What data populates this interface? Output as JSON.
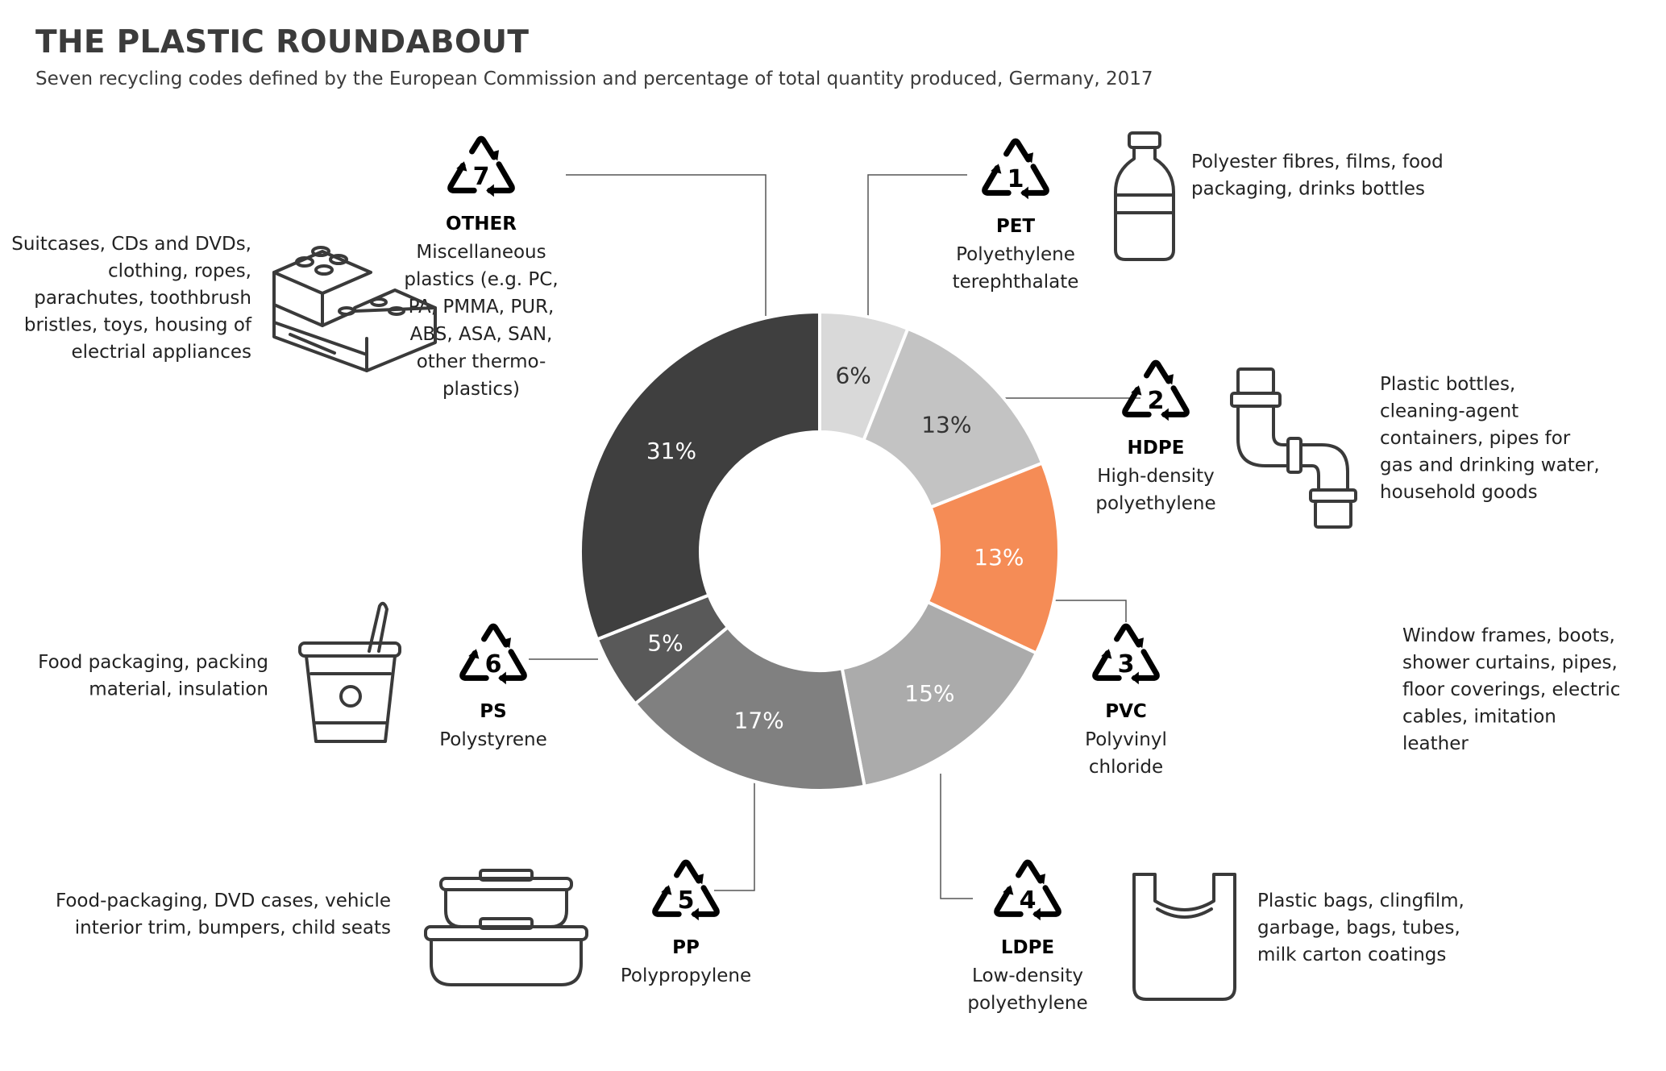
{
  "title": "THE PLASTIC ROUNDABOUT",
  "subtitle": "Seven recycling codes defined by the European Commission and percentage of total quantity produced, Germany, 2017",
  "chart_data": {
    "type": "pie",
    "donut": true,
    "categories": [
      "PET",
      "HDPE",
      "PVC",
      "LDPE",
      "PP",
      "PS",
      "OTHER"
    ],
    "values": [
      6,
      13,
      13,
      15,
      17,
      5,
      31
    ],
    "labels": [
      "6%",
      "13%",
      "13%",
      "15%",
      "17%",
      "5%",
      "31%"
    ],
    "colors": [
      "#d9d9d9",
      "#c3c3c3",
      "#f58c56",
      "#ababab",
      "#808080",
      "#595959",
      "#3f3f3f"
    ],
    "label_colors": [
      "#333333",
      "#333333",
      "#ffffff",
      "#ffffff",
      "#ffffff",
      "#ffffff",
      "#ffffff"
    ],
    "start_angle_deg": 0,
    "direction": "clockwise"
  },
  "codes": [
    {
      "number": "1",
      "abbr": "PET",
      "name_lines": [
        "Polyethylene",
        "terephthalate"
      ],
      "uses_lines": [
        "Polyester fibres, films, food",
        "packaging, drinks bottles"
      ],
      "icon": "bottle-icon"
    },
    {
      "number": "2",
      "abbr": "HDPE",
      "name_lines": [
        "High-density",
        "polyethylene"
      ],
      "uses_lines": [
        "Plastic bottles,",
        "cleaning-agent",
        "containers, pipes for",
        "gas and drinking water,",
        "household goods"
      ],
      "icon": "pipe-icon"
    },
    {
      "number": "3",
      "abbr": "PVC",
      "name_lines": [
        "Polyvinyl",
        "chloride"
      ],
      "uses_lines": [
        "Window frames,  boots,",
        "shower curtains, pipes,",
        "floor coverings, electric",
        "cables, imitation",
        "leather"
      ],
      "icon": ""
    },
    {
      "number": "4",
      "abbr": "LDPE",
      "name_lines": [
        "Low-density",
        "polyethylene"
      ],
      "uses_lines": [
        "Plastic bags, clingfilm,",
        "garbage, bags, tubes,",
        "milk carton coatings"
      ],
      "icon": "plastic-bag-icon"
    },
    {
      "number": "5",
      "abbr": "PP",
      "name_lines": [
        "Polypropylene"
      ],
      "uses_lines": [
        "Food-packaging, DVD cases, vehicle",
        "interior trim, bumpers, child seats"
      ],
      "icon": "food-containers-icon"
    },
    {
      "number": "6",
      "abbr": "PS",
      "name_lines": [
        "Polystyrene"
      ],
      "uses_lines": [
        "Food packaging, packing",
        "material, insulation"
      ],
      "icon": "yogurt-cup-icon"
    },
    {
      "number": "7",
      "abbr": "OTHER",
      "name_lines": [
        "Miscellaneous",
        "plastics (e.g. PC,",
        "PA, PMMA, PUR,",
        "ABS, ASA, SAN,",
        "other thermo-",
        "plastics)"
      ],
      "uses_lines": [
        "Suitcases, CDs and DVDs,",
        "clothing, ropes,",
        "parachutes, toothbrush",
        "bristles, toys, housing of",
        "electrial appliances"
      ],
      "icon": "toy-bricks-icon"
    }
  ]
}
